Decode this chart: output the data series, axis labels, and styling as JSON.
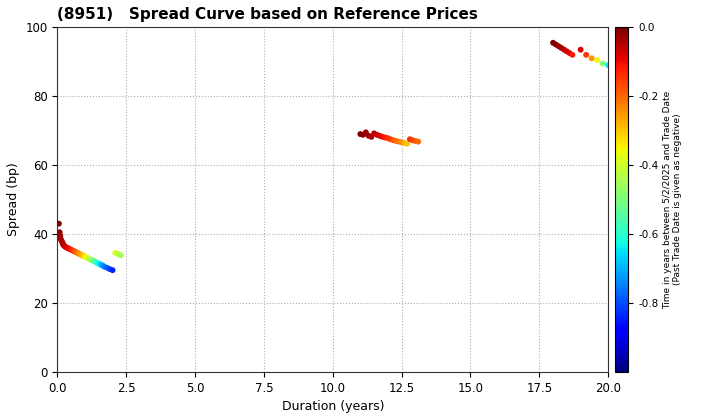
{
  "title": "(8951)   Spread Curve based on Reference Prices",
  "xlabel": "Duration (years)",
  "ylabel": "Spread (bp)",
  "xlim": [
    0,
    20.0
  ],
  "ylim": [
    0,
    100
  ],
  "xticks": [
    0.0,
    2.5,
    5.0,
    7.5,
    10.0,
    12.5,
    15.0,
    17.5,
    20.0
  ],
  "yticks": [
    0,
    20,
    40,
    60,
    80,
    100
  ],
  "clim_min": -1.0,
  "clim_max": 0.0,
  "colorbar_ticks": [
    0.0,
    -0.2,
    -0.4,
    -0.6,
    -0.8
  ],
  "colorbar_ticklabels": [
    "0.0",
    "-0.2",
    "-0.4",
    "-0.6",
    "-0.8"
  ],
  "colorbar_label_line1": "Time in years between 5/2/2025 and Trade Date",
  "colorbar_label_line2": "(Past Trade Date is given as negative)",
  "background_color": "#ffffff",
  "grid_color": "#aaaaaa",
  "marker_size": 18,
  "cluster1": {
    "points": [
      {
        "d": 0.05,
        "s": 43.0,
        "c": 0.0
      },
      {
        "d": 0.08,
        "s": 40.5,
        "c": -0.01
      },
      {
        "d": 0.1,
        "s": 39.5,
        "c": -0.02
      },
      {
        "d": 0.12,
        "s": 38.5,
        "c": -0.03
      },
      {
        "d": 0.15,
        "s": 38.0,
        "c": -0.04
      },
      {
        "d": 0.18,
        "s": 37.5,
        "c": -0.04
      },
      {
        "d": 0.2,
        "s": 37.0,
        "c": -0.05
      },
      {
        "d": 0.22,
        "s": 36.8,
        "c": -0.05
      },
      {
        "d": 0.25,
        "s": 36.5,
        "c": -0.06
      },
      {
        "d": 0.3,
        "s": 36.2,
        "c": -0.07
      },
      {
        "d": 0.35,
        "s": 36.0,
        "c": -0.08
      },
      {
        "d": 0.4,
        "s": 35.8,
        "c": -0.09
      },
      {
        "d": 0.45,
        "s": 35.6,
        "c": -0.1
      },
      {
        "d": 0.5,
        "s": 35.4,
        "c": -0.12
      },
      {
        "d": 0.55,
        "s": 35.2,
        "c": -0.14
      },
      {
        "d": 0.6,
        "s": 35.0,
        "c": -0.16
      },
      {
        "d": 0.65,
        "s": 34.8,
        "c": -0.18
      },
      {
        "d": 0.7,
        "s": 34.6,
        "c": -0.2
      },
      {
        "d": 0.75,
        "s": 34.4,
        "c": -0.22
      },
      {
        "d": 0.8,
        "s": 34.2,
        "c": -0.24
      },
      {
        "d": 0.85,
        "s": 34.0,
        "c": -0.26
      },
      {
        "d": 0.9,
        "s": 33.8,
        "c": -0.28
      },
      {
        "d": 0.95,
        "s": 33.6,
        "c": -0.3
      },
      {
        "d": 1.0,
        "s": 33.4,
        "c": -0.33
      },
      {
        "d": 1.05,
        "s": 33.2,
        "c": -0.36
      },
      {
        "d": 1.1,
        "s": 33.0,
        "c": -0.39
      },
      {
        "d": 1.15,
        "s": 32.8,
        "c": -0.42
      },
      {
        "d": 1.2,
        "s": 32.6,
        "c": -0.45
      },
      {
        "d": 1.25,
        "s": 32.4,
        "c": -0.48
      },
      {
        "d": 1.3,
        "s": 32.2,
        "c": -0.51
      },
      {
        "d": 1.35,
        "s": 32.0,
        "c": -0.54
      },
      {
        "d": 1.4,
        "s": 31.8,
        "c": -0.57
      },
      {
        "d": 1.45,
        "s": 31.6,
        "c": -0.6
      },
      {
        "d": 1.5,
        "s": 31.4,
        "c": -0.63
      },
      {
        "d": 1.55,
        "s": 31.2,
        "c": -0.66
      },
      {
        "d": 1.6,
        "s": 31.0,
        "c": -0.69
      },
      {
        "d": 1.65,
        "s": 30.8,
        "c": -0.72
      },
      {
        "d": 1.7,
        "s": 30.5,
        "c": -0.75
      },
      {
        "d": 1.8,
        "s": 30.2,
        "c": -0.78
      },
      {
        "d": 1.9,
        "s": 29.8,
        "c": -0.81
      },
      {
        "d": 2.0,
        "s": 29.5,
        "c": -0.84
      },
      {
        "d": 2.1,
        "s": 34.5,
        "c": -0.4
      },
      {
        "d": 2.2,
        "s": 34.2,
        "c": -0.42
      },
      {
        "d": 2.3,
        "s": 33.8,
        "c": -0.45
      }
    ]
  },
  "cluster2": {
    "points": [
      {
        "d": 11.0,
        "s": 69.0,
        "c": 0.0
      },
      {
        "d": 11.1,
        "s": 68.8,
        "c": -0.01
      },
      {
        "d": 11.2,
        "s": 69.5,
        "c": -0.02
      },
      {
        "d": 11.3,
        "s": 68.5,
        "c": -0.03
      },
      {
        "d": 11.4,
        "s": 68.2,
        "c": -0.04
      },
      {
        "d": 11.5,
        "s": 69.2,
        "c": -0.05
      },
      {
        "d": 11.6,
        "s": 68.8,
        "c": -0.06
      },
      {
        "d": 11.7,
        "s": 68.5,
        "c": -0.08
      },
      {
        "d": 11.8,
        "s": 68.2,
        "c": -0.1
      },
      {
        "d": 11.9,
        "s": 68.0,
        "c": -0.12
      },
      {
        "d": 12.0,
        "s": 67.8,
        "c": -0.14
      },
      {
        "d": 12.1,
        "s": 67.5,
        "c": -0.16
      },
      {
        "d": 12.2,
        "s": 67.2,
        "c": -0.18
      },
      {
        "d": 12.3,
        "s": 67.0,
        "c": -0.2
      },
      {
        "d": 12.4,
        "s": 66.8,
        "c": -0.22
      },
      {
        "d": 12.5,
        "s": 66.6,
        "c": -0.24
      },
      {
        "d": 12.6,
        "s": 66.4,
        "c": -0.27
      },
      {
        "d": 12.7,
        "s": 66.2,
        "c": -0.3
      },
      {
        "d": 12.8,
        "s": 67.5,
        "c": -0.14
      },
      {
        "d": 12.9,
        "s": 67.2,
        "c": -0.16
      },
      {
        "d": 13.0,
        "s": 67.0,
        "c": -0.18
      },
      {
        "d": 13.1,
        "s": 66.8,
        "c": -0.2
      }
    ]
  },
  "cluster3": {
    "points": [
      {
        "d": 18.0,
        "s": 95.5,
        "c": 0.0
      },
      {
        "d": 18.1,
        "s": 95.0,
        "c": -0.01
      },
      {
        "d": 18.2,
        "s": 94.5,
        "c": -0.02
      },
      {
        "d": 18.3,
        "s": 94.0,
        "c": -0.03
      },
      {
        "d": 18.4,
        "s": 93.5,
        "c": -0.05
      },
      {
        "d": 18.5,
        "s": 93.0,
        "c": -0.07
      },
      {
        "d": 18.6,
        "s": 92.5,
        "c": -0.09
      },
      {
        "d": 18.7,
        "s": 92.0,
        "c": -0.12
      },
      {
        "d": 19.0,
        "s": 93.5,
        "c": -0.08
      },
      {
        "d": 19.2,
        "s": 92.0,
        "c": -0.15
      },
      {
        "d": 19.4,
        "s": 91.0,
        "c": -0.25
      },
      {
        "d": 19.6,
        "s": 90.5,
        "c": -0.35
      },
      {
        "d": 19.8,
        "s": 89.5,
        "c": -0.5
      },
      {
        "d": 20.0,
        "s": 89.0,
        "c": -0.65
      }
    ]
  }
}
